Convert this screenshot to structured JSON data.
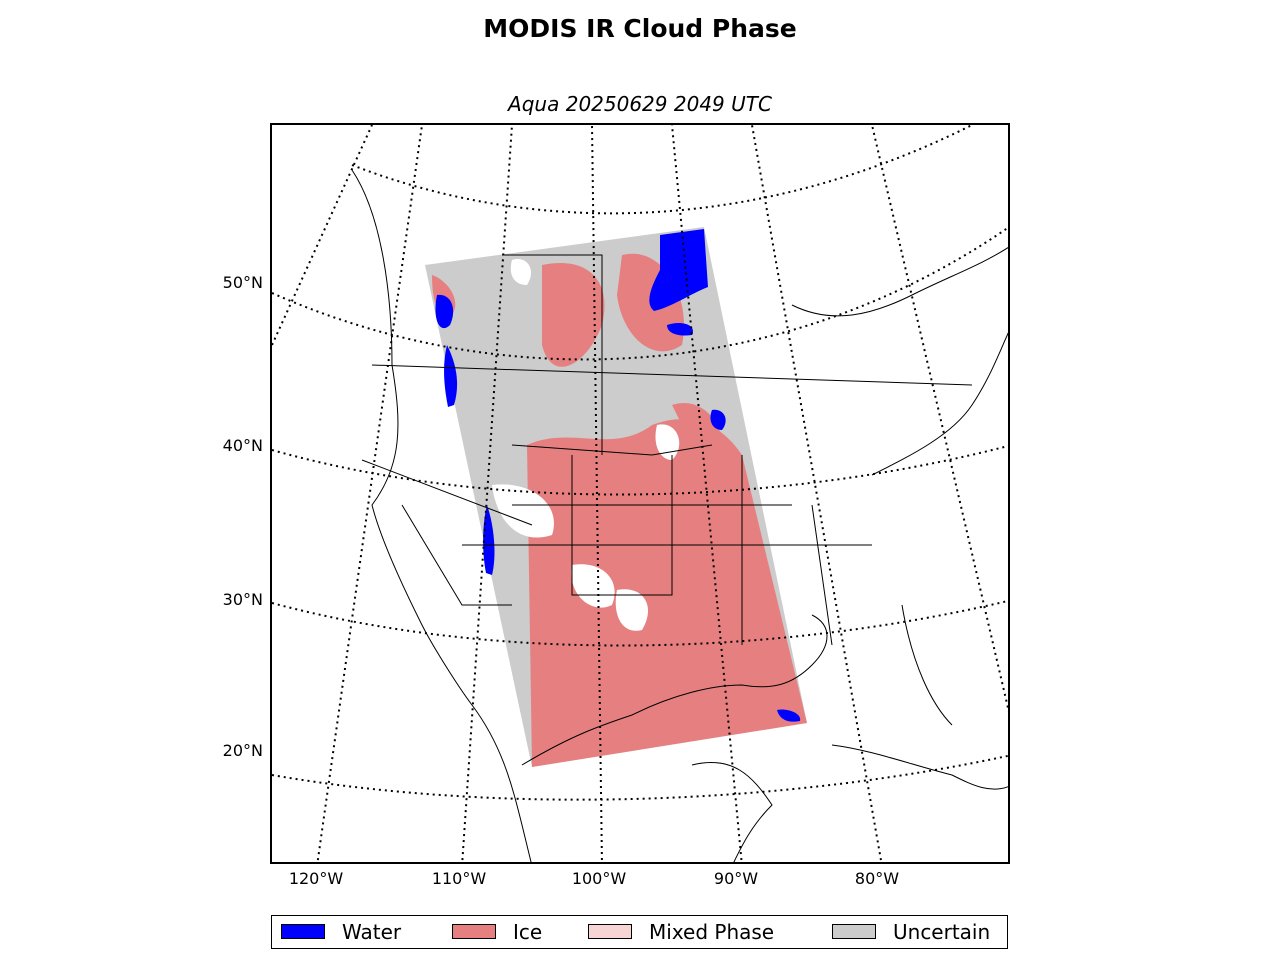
{
  "title": "MODIS IR Cloud Phase",
  "subtitle": "Aqua 20250629 2049 UTC",
  "latitude_labels": [
    "50°N",
    "40°N",
    "30°N",
    "20°N"
  ],
  "longitude_labels": [
    "120°W",
    "110°W",
    "100°W",
    "90°W",
    "80°W"
  ],
  "legend": [
    {
      "label": "Water",
      "color": "#0000ff"
    },
    {
      "label": "Ice",
      "color": "#e68080"
    },
    {
      "label": "Mixed Phase",
      "color": "#f7d5d5"
    },
    {
      "label": "Uncertain",
      "color": "#cccccc"
    }
  ],
  "map": {
    "projection": "lambert-conformal",
    "graticule": "dotted",
    "extent_lat": [
      13,
      58
    ],
    "extent_lon": [
      -125,
      -65
    ]
  }
}
